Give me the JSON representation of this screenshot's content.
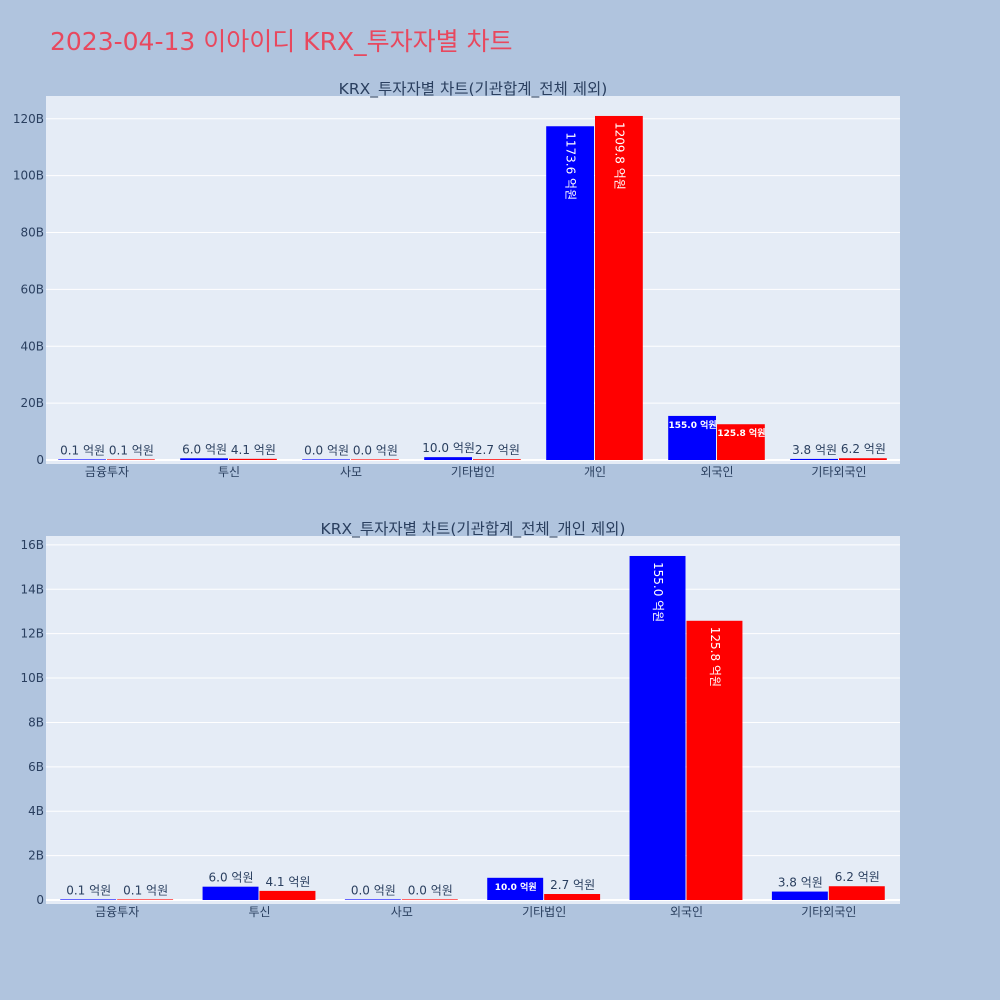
{
  "page": {
    "title": "2023-04-13 이아이디 KRX_투자자별 차트",
    "title_color": "#e8485e",
    "background": "#b0c4de",
    "plot_background": "#e5ecf6"
  },
  "chart_data": [
    {
      "type": "bar",
      "title": "KRX_투자자별 차트(기관합계_전체 제외)",
      "categories": [
        "금융투자",
        "투신",
        "사모",
        "기타법인",
        "개인",
        "외국인",
        "기타외국인"
      ],
      "series": [
        {
          "color": "#0000ff",
          "values": [
            0.01,
            0.6,
            0.0,
            1.0,
            117.36,
            15.5,
            0.38
          ],
          "labels": [
            "0.1 억원",
            "6.0 억원",
            "0.0 억원",
            "10.0 억원",
            "1173.6 억원",
            "155.0 억원",
            "3.8 억원"
          ]
        },
        {
          "color": "#ff0000",
          "values": [
            0.01,
            0.41,
            0.0,
            0.27,
            120.98,
            12.58,
            0.62
          ],
          "labels": [
            "0.1 억원",
            "4.1 억원",
            "0.0 억원",
            "2.7 억원",
            "1209.8 억원",
            "125.8 억원",
            "6.2 억원"
          ]
        }
      ],
      "ylim": [
        0,
        128
      ],
      "yticks": [
        0,
        20,
        40,
        60,
        80,
        100,
        120
      ],
      "ytick_labels": [
        "0",
        "20B",
        "40B",
        "60B",
        "80B",
        "100B",
        "120B"
      ],
      "grid": true
    },
    {
      "type": "bar",
      "title": "KRX_투자자별 차트(기관합계_전체_개인 제외)",
      "categories": [
        "금융투자",
        "투신",
        "사모",
        "기타법인",
        "외국인",
        "기타외국인"
      ],
      "series": [
        {
          "color": "#0000ff",
          "values": [
            0.01,
            0.6,
            0.0,
            1.0,
            15.5,
            0.38
          ],
          "labels": [
            "0.1 억원",
            "6.0 억원",
            "0.0 억원",
            "10.0 억원",
            "155.0 억원",
            "3.8 억원"
          ]
        },
        {
          "color": "#ff0000",
          "values": [
            0.01,
            0.41,
            0.0,
            0.27,
            12.58,
            0.62
          ],
          "labels": [
            "0.1 억원",
            "4.1 억원",
            "0.0 억원",
            "2.7 억원",
            "125.8 억원",
            "6.2 억원"
          ]
        }
      ],
      "ylim": [
        0,
        16.4
      ],
      "yticks": [
        0,
        2,
        4,
        6,
        8,
        10,
        12,
        14,
        16
      ],
      "ytick_labels": [
        "0",
        "2B",
        "4B",
        "6B",
        "8B",
        "10B",
        "12B",
        "14B",
        "16B"
      ],
      "grid": true
    }
  ]
}
